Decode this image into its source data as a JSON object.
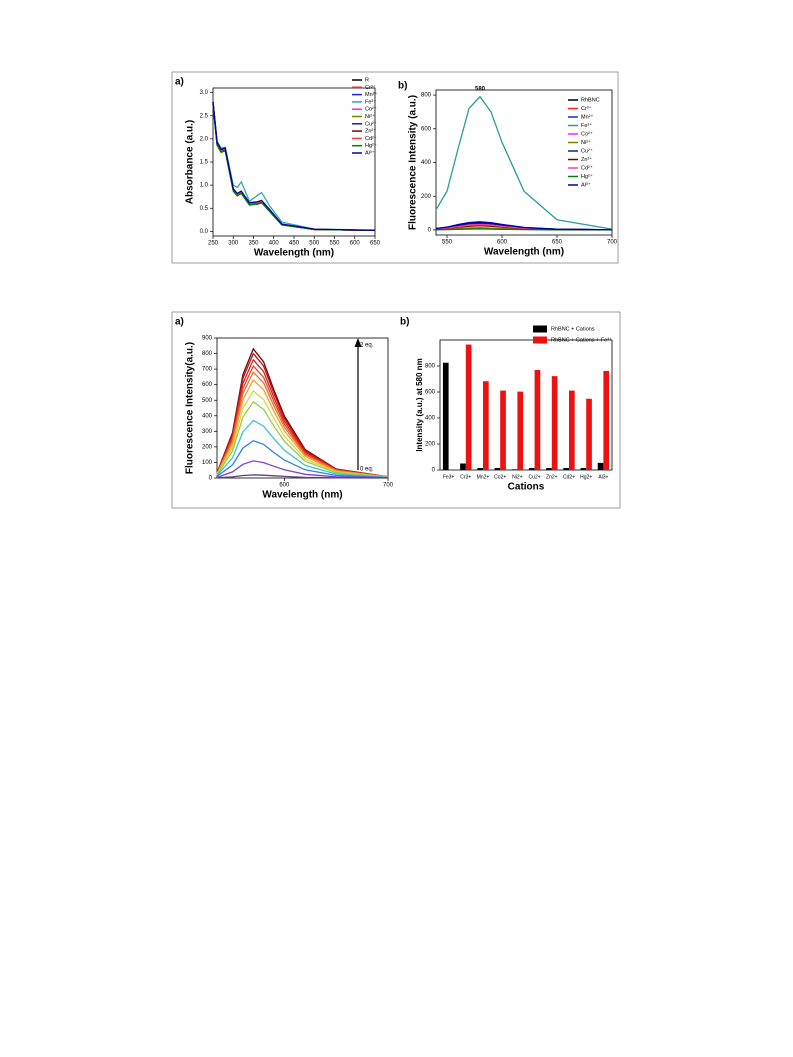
{
  "chart_data": [
    {
      "type": "line",
      "panel_label": "a)",
      "xlabel": "Wavelength (nm)",
      "ylabel": "Absorbance (a.u.)",
      "x": [
        250,
        260,
        270,
        280,
        300,
        310,
        320,
        340,
        360,
        370,
        390,
        420,
        500,
        650
      ],
      "xlim": [
        250,
        650
      ],
      "xticks": [
        250,
        300,
        350,
        400,
        450,
        500,
        550,
        600,
        650
      ],
      "ylim": [
        -0.1,
        3.1
      ],
      "yticks": [
        {
          "value": 0,
          "label": "0.0"
        },
        0.5,
        {
          "value": 1,
          "label": "1.0"
        },
        1.5,
        {
          "value": 2,
          "label": "2.0"
        },
        2.5,
        {
          "value": 3,
          "label": "3.0"
        }
      ],
      "series": [
        {
          "name": "R",
          "color": "#000000",
          "values": [
            2.8,
            1.9,
            1.75,
            1.78,
            0.9,
            0.8,
            0.85,
            0.6,
            0.62,
            0.65,
            0.45,
            0.15,
            0.04,
            0.02
          ]
        },
        {
          "name": "Cr³⁺",
          "color": "#ff2020",
          "values": [
            2.78,
            1.88,
            1.73,
            1.76,
            0.88,
            0.78,
            0.83,
            0.58,
            0.6,
            0.63,
            0.44,
            0.14,
            0.04,
            0.02
          ]
        },
        {
          "name": "Mn²⁺",
          "color": "#2020ff",
          "values": [
            2.75,
            1.87,
            1.72,
            1.75,
            0.87,
            0.77,
            0.82,
            0.57,
            0.59,
            0.62,
            0.43,
            0.14,
            0.04,
            0.02
          ]
        },
        {
          "name": "Fe³⁺",
          "color": "#30a8a8",
          "values": [
            2.8,
            1.95,
            1.8,
            1.82,
            1.0,
            0.95,
            1.07,
            0.65,
            0.78,
            0.84,
            0.55,
            0.2,
            0.05,
            0.03
          ]
        },
        {
          "name": "Co²⁺",
          "color": "#ff20ff",
          "values": [
            2.79,
            1.9,
            1.74,
            1.77,
            0.89,
            0.79,
            0.84,
            0.59,
            0.61,
            0.64,
            0.45,
            0.15,
            0.04,
            0.02
          ]
        },
        {
          "name": "Ni²⁺",
          "color": "#808000",
          "values": [
            2.76,
            1.86,
            1.72,
            1.75,
            0.88,
            0.78,
            0.83,
            0.59,
            0.6,
            0.62,
            0.44,
            0.14,
            0.04,
            0.02
          ]
        },
        {
          "name": "Cu²⁺",
          "color": "#202080",
          "values": [
            2.8,
            1.91,
            1.76,
            1.79,
            0.91,
            0.81,
            0.86,
            0.61,
            0.63,
            0.66,
            0.46,
            0.15,
            0.04,
            0.02
          ]
        },
        {
          "name": "Zn²⁺",
          "color": "#800000",
          "values": [
            2.77,
            1.89,
            1.74,
            1.77,
            0.9,
            0.8,
            0.84,
            0.6,
            0.61,
            0.64,
            0.45,
            0.15,
            0.04,
            0.02
          ]
        },
        {
          "name": "Cd²⁺",
          "color": "#ff4040",
          "values": [
            2.78,
            1.9,
            1.75,
            1.78,
            0.9,
            0.8,
            0.85,
            0.6,
            0.62,
            0.65,
            0.45,
            0.15,
            0.04,
            0.02
          ]
        },
        {
          "name": "Hg²⁺",
          "color": "#008000",
          "values": [
            2.74,
            1.86,
            1.71,
            1.74,
            0.87,
            0.77,
            0.82,
            0.58,
            0.59,
            0.62,
            0.43,
            0.14,
            0.04,
            0.02
          ]
        },
        {
          "name": "Al³⁺",
          "color": "#0000a0",
          "values": [
            2.8,
            1.92,
            1.77,
            1.8,
            0.92,
            0.82,
            0.87,
            0.62,
            0.64,
            0.67,
            0.47,
            0.16,
            0.05,
            0.02
          ]
        }
      ]
    },
    {
      "type": "line",
      "panel_label": "b)",
      "xlabel": "Wavelength (nm)",
      "ylabel": "Fluorescence Intensity (a.u.)",
      "annotations": [
        "580"
      ],
      "x": [
        540,
        550,
        560,
        570,
        580,
        590,
        600,
        620,
        650,
        700
      ],
      "xlim": [
        540,
        700
      ],
      "xticks": [
        550,
        600,
        650,
        700
      ],
      "ylim": [
        -30,
        830
      ],
      "yticks": [
        0,
        200,
        400,
        600,
        800
      ],
      "series": [
        {
          "name": "RhBNC",
          "color": "#000000",
          "values": [
            8,
            15,
            28,
            40,
            45,
            40,
            30,
            14,
            4,
            1
          ]
        },
        {
          "name": "Cr³⁺",
          "color": "#ff2020",
          "values": [
            6,
            12,
            22,
            30,
            33,
            29,
            22,
            10,
            3,
            1
          ]
        },
        {
          "name": "Mn²⁺",
          "color": "#2020ff",
          "values": [
            9,
            17,
            32,
            44,
            48,
            43,
            33,
            15,
            5,
            1
          ]
        },
        {
          "name": "Fe³⁺",
          "color": "#2a9d9a",
          "values": [
            120,
            230,
            480,
            720,
            790,
            700,
            520,
            230,
            60,
            5
          ]
        },
        {
          "name": "Co²⁺",
          "color": "#ff20ff",
          "values": [
            5,
            10,
            18,
            25,
            28,
            25,
            19,
            9,
            3,
            1
          ]
        },
        {
          "name": "Ni²⁺",
          "color": "#808000",
          "values": [
            2,
            4,
            8,
            12,
            13,
            11,
            8,
            4,
            1,
            0
          ]
        },
        {
          "name": "Cu²⁺",
          "color": "#202080",
          "values": [
            7,
            14,
            26,
            37,
            40,
            36,
            28,
            13,
            4,
            1
          ]
        },
        {
          "name": "Zn²⁺",
          "color": "#800000",
          "values": [
            5,
            9,
            16,
            22,
            25,
            22,
            17,
            8,
            2,
            1
          ]
        },
        {
          "name": "Cd²⁺",
          "color": "#ff40a0",
          "values": [
            6,
            11,
            20,
            28,
            31,
            28,
            21,
            10,
            3,
            1
          ]
        },
        {
          "name": "Hg²⁺",
          "color": "#008000",
          "values": [
            1,
            2,
            4,
            5,
            6,
            5,
            4,
            2,
            1,
            0
          ]
        },
        {
          "name": "Al³⁺",
          "color": "#0000a0",
          "values": [
            8,
            16,
            30,
            42,
            46,
            41,
            31,
            14,
            4,
            1
          ]
        }
      ]
    },
    {
      "type": "line",
      "panel_label": "a)",
      "xlabel": "Wavelength (nm)",
      "ylabel": "Fluorescence Intensity(a.u.)",
      "annotations": [
        "2 eq.",
        "0 eq."
      ],
      "x": [
        535,
        550,
        560,
        570,
        580,
        590,
        600,
        620,
        650,
        700
      ],
      "xlim": [
        535,
        700
      ],
      "xticks": [
        600,
        700
      ],
      "ylim": [
        0,
        900
      ],
      "yticks": [
        0,
        100,
        200,
        300,
        400,
        500,
        600,
        700,
        800,
        900
      ],
      "series": [
        {
          "color": "#7a0000",
          "values": [
            33,
            291,
            664,
            830,
            747,
            564,
            398,
            183,
            58,
            8
          ]
        },
        {
          "color": "#b01818",
          "values": [
            32,
            280,
            640,
            800,
            720,
            544,
            384,
            176,
            56,
            8
          ]
        },
        {
          "color": "#d62020",
          "values": [
            30,
            266,
            608,
            760,
            684,
            517,
            365,
            167,
            53,
            8
          ]
        },
        {
          "color": "#e8452a",
          "values": [
            29,
            252,
            576,
            720,
            648,
            490,
            346,
            158,
            50,
            7
          ]
        },
        {
          "color": "#f07030",
          "values": [
            27,
            238,
            544,
            680,
            612,
            462,
            326,
            150,
            48,
            7
          ]
        },
        {
          "color": "#f5a030",
          "values": [
            25,
            221,
            504,
            630,
            567,
            428,
            302,
            139,
            44,
            6
          ]
        },
        {
          "color": "#e8d040",
          "values": [
            22,
            196,
            448,
            560,
            504,
            381,
            269,
            123,
            39,
            6
          ]
        },
        {
          "color": "#90d040",
          "values": [
            20,
            172,
            392,
            490,
            441,
            333,
            235,
            108,
            34,
            5
          ]
        },
        {
          "color": "#40c8c0",
          "values": [
            15,
            130,
            296,
            370,
            333,
            252,
            178,
            81,
            26,
            4
          ]
        },
        {
          "color": "#3080e8",
          "values": [
            10,
            84,
            192,
            240,
            216,
            163,
            115,
            53,
            17,
            2
          ]
        },
        {
          "color": "#8040d0",
          "values": [
            4,
            39,
            88,
            110,
            99,
            75,
            53,
            24,
            8,
            1
          ]
        },
        {
          "color": "#604080",
          "values": [
            1,
            7,
            16,
            20,
            18,
            14,
            10,
            4,
            1,
            0
          ]
        }
      ]
    },
    {
      "type": "bar",
      "panel_label": "b)",
      "xlabel": "Cations",
      "ylabel": "Intensity (a.u.) at 580 nm",
      "categories": [
        "Fe3+",
        "Cr3+",
        "Mn2+",
        "Co2+",
        "Ni2+",
        "Cu2+",
        "Zn2+",
        "Cd2+",
        "Hg2+",
        "Al3+"
      ],
      "ylim": [
        0,
        1000
      ],
      "yticks": [
        0,
        200,
        400,
        600,
        800
      ],
      "series": [
        {
          "name": "RhBNC + Cations",
          "color": "#000000",
          "values": [
            825,
            50,
            15,
            15,
            5,
            15,
            15,
            15,
            15,
            55
          ]
        },
        {
          "name": "RhBNC + Cations + Fe³⁺",
          "color": "#ee1111",
          "values": [
            null,
            965,
            683,
            611,
            603,
            770,
            722,
            611,
            548,
            762
          ]
        }
      ]
    }
  ]
}
